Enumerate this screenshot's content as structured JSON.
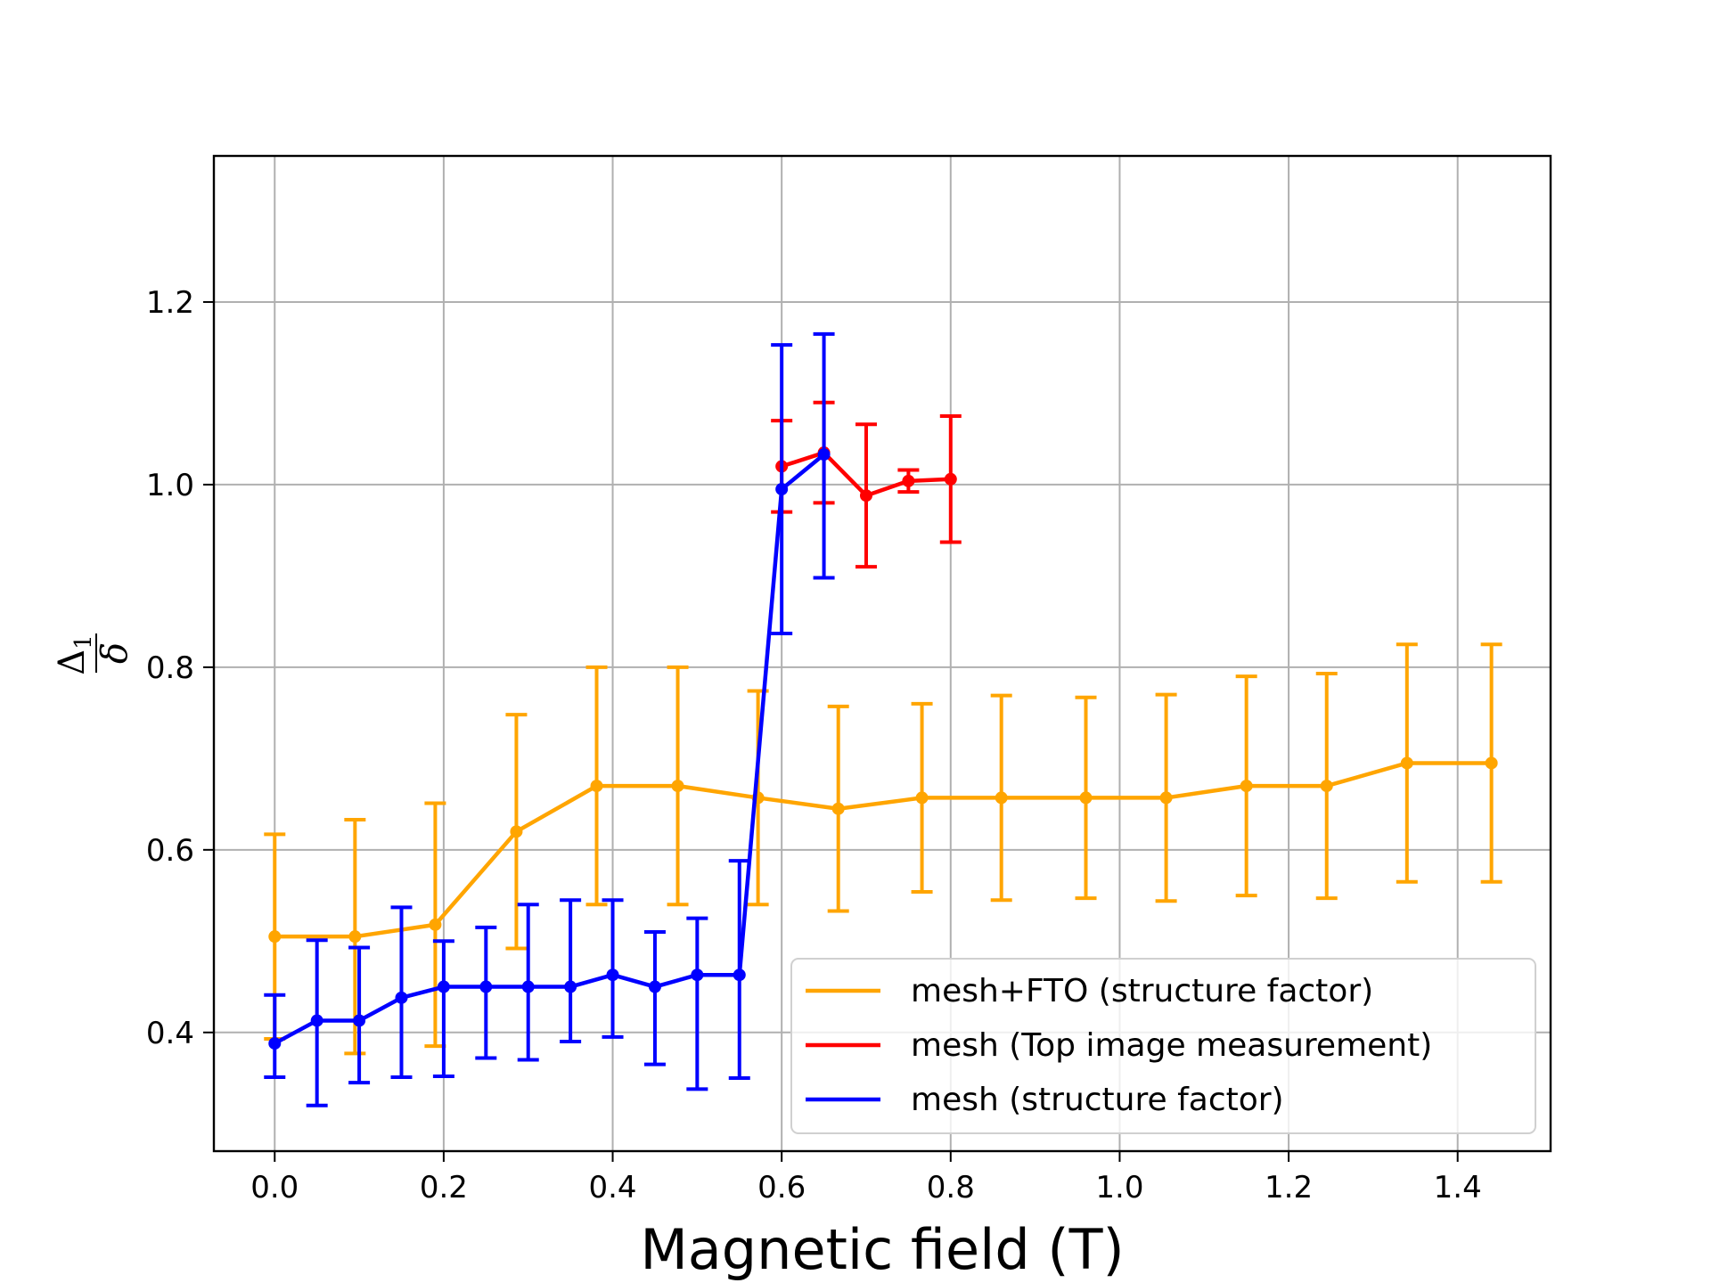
{
  "chart_data": {
    "type": "line",
    "title": "",
    "xlabel": "Magnetic field (T)",
    "ylabel": {
      "numerator": "Δ",
      "subscript": "1",
      "denominator": "δ"
    },
    "xlim": [
      -0.072,
      1.51
    ],
    "ylim": [
      0.27,
      1.36
    ],
    "xticks": [
      0.0,
      0.2,
      0.4,
      0.6,
      0.8,
      1.0,
      1.2,
      1.4
    ],
    "xtick_labels": [
      "0.0",
      "0.2",
      "0.4",
      "0.6",
      "0.8",
      "1.0",
      "1.2",
      "1.4"
    ],
    "yticks": [
      0.4,
      0.6,
      0.8,
      1.0,
      1.2
    ],
    "ytick_labels": [
      "0.4",
      "0.6",
      "0.8",
      "1.0",
      "1.2"
    ],
    "grid": true,
    "legend_position": "bottom-right",
    "series": [
      {
        "name": "mesh+FTO (structure factor)",
        "color": "#FFA500",
        "x": [
          0.0,
          0.095,
          0.19,
          0.286,
          0.381,
          0.477,
          0.572,
          0.667,
          0.766,
          0.86,
          0.96,
          1.055,
          1.15,
          1.245,
          1.34,
          1.44
        ],
        "y": [
          0.505,
          0.505,
          0.518,
          0.62,
          0.67,
          0.67,
          0.657,
          0.645,
          0.657,
          0.657,
          0.657,
          0.657,
          0.67,
          0.67,
          0.695,
          0.695
        ],
        "err": [
          0.112,
          0.128,
          0.133,
          0.128,
          0.13,
          0.13,
          0.117,
          0.112,
          0.103,
          0.112,
          0.11,
          0.113,
          0.12,
          0.123,
          0.13,
          0.13
        ]
      },
      {
        "name": "mesh (Top image measurement)",
        "color": "#FF0000",
        "x": [
          0.6,
          0.65,
          0.7,
          0.75,
          0.8
        ],
        "y": [
          1.02,
          1.035,
          0.988,
          1.004,
          1.006
        ],
        "err": [
          0.05,
          0.055,
          0.078,
          0.012,
          0.069
        ]
      },
      {
        "name": "mesh (structure factor)",
        "color": "#0000FF",
        "x": [
          0.0,
          0.05,
          0.1,
          0.15,
          0.2,
          0.25,
          0.3,
          0.35,
          0.4,
          0.45,
          0.5,
          0.55,
          0.6,
          0.65
        ],
        "y": [
          0.388,
          0.413,
          0.413,
          0.438,
          0.45,
          0.45,
          0.45,
          0.45,
          0.463,
          0.45,
          0.463,
          0.463,
          0.995,
          1.033
        ],
        "err": [
          0.053,
          0.088,
          0.08,
          0.099,
          0.05,
          0.065,
          0.09,
          0.095,
          0.082,
          0.06,
          0.062,
          0.125,
          0.158,
          0.132
        ],
        "err_lower": [
          0.037,
          0.093,
          0.068,
          0.087,
          0.098,
          0.078,
          0.08,
          0.06,
          0.068,
          0.085,
          0.125,
          0.113,
          0.158,
          0.135
        ]
      }
    ]
  }
}
